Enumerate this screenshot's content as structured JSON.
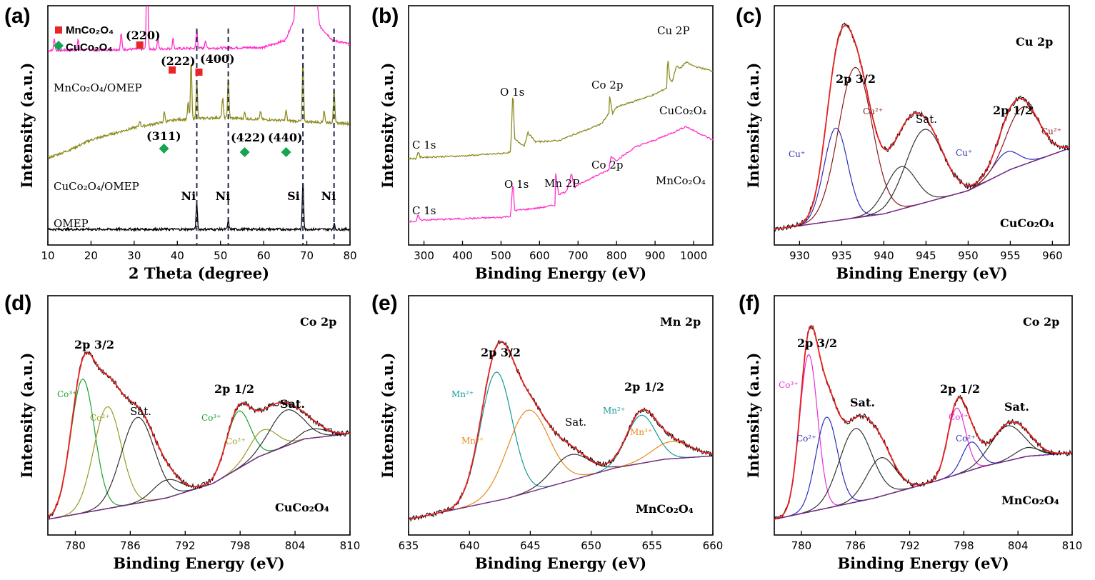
{
  "chart_data": [
    {
      "panel": "(a)",
      "type": "line",
      "xlabel": "2 Theta (degree)",
      "ylabel": "Intensity (a.u.)",
      "xlim": [
        10,
        80
      ],
      "xticks": [
        10,
        20,
        30,
        40,
        50,
        60,
        70,
        80
      ],
      "legend": [
        {
          "label": "MnCo₂O₄",
          "marker": "square",
          "color": "#e8262a"
        },
        {
          "label": "CuCo₂O₄",
          "marker": "diamond",
          "color": "#14a550"
        }
      ],
      "series": [
        {
          "name": "MnCo₂O₄/OMEP",
          "color": "#ff33cc",
          "offset": 0.88,
          "baseline": [
            [
              10,
              0
            ],
            [
              60,
              0.015
            ],
            [
              65,
              0.05
            ],
            [
              67,
              0.15
            ],
            [
              68.5,
              0.7
            ],
            [
              69,
              1.2
            ],
            [
              70.5,
              1.2
            ],
            [
              71.5,
              0.4
            ],
            [
              73,
              0.12
            ],
            [
              76,
              0.05
            ],
            [
              80,
              0.03
            ]
          ],
          "peaks": [
            [
              11.5,
              0.06
            ],
            [
              17,
              0.05
            ],
            [
              27,
              0.08
            ],
            [
              33,
              0.6
            ],
            [
              35.5,
              0.05
            ],
            [
              39,
              0.05
            ],
            [
              44.5,
              0.1
            ],
            [
              46.5,
              0.04
            ]
          ]
        },
        {
          "name": "CuCo₂O₄/OMEP",
          "color": "#8d8b1e",
          "offset": 0.35,
          "baseline": [
            [
              10,
              0
            ],
            [
              15,
              0.04
            ],
            [
              20,
              0.09
            ],
            [
              30,
              0.15
            ],
            [
              40,
              0.19
            ],
            [
              50,
              0.2
            ],
            [
              60,
              0.19
            ],
            [
              70,
              0.18
            ],
            [
              80,
              0.17
            ]
          ],
          "peaks": [
            [
              31.3,
              0.03
            ],
            [
              37,
              0.05
            ],
            [
              42.5,
              0.08
            ],
            [
              43.2,
              0.28
            ],
            [
              44.5,
              0.2
            ],
            [
              50.5,
              0.1
            ],
            [
              51.8,
              0.2
            ],
            [
              55.6,
              0.03
            ],
            [
              59.3,
              0.04
            ],
            [
              65.2,
              0.05
            ],
            [
              69.1,
              0.3
            ],
            [
              74,
              0.06
            ],
            [
              76.3,
              0.18
            ]
          ]
        },
        {
          "name": "OMEP",
          "color": "#000000",
          "offset": 0.0,
          "baseline": [
            [
              10,
              0
            ],
            [
              80,
              0
            ]
          ],
          "peaks": [
            [
              44.5,
              0.13
            ],
            [
              51.8,
              0.04
            ],
            [
              69.1,
              0.24
            ],
            [
              76.3,
              0.03
            ]
          ]
        }
      ],
      "hkl": [
        {
          "label": "(220)",
          "x": 31.3
        },
        {
          "label": "(222)",
          "x": 38.8
        },
        {
          "label": "(400)",
          "x": 45.0
        },
        {
          "label": "(311)",
          "x": 36.9
        },
        {
          "label": "(422)",
          "x": 55.6
        },
        {
          "label": "(440)",
          "x": 65.2
        }
      ],
      "ref_lines": [
        44.5,
        51.8,
        69.1,
        76.3
      ],
      "ref_labels": [
        "Ni",
        "Ni",
        "Si",
        "Ni"
      ]
    },
    {
      "panel": "(b)",
      "type": "line",
      "xlabel": "Binding Energy (eV)",
      "ylabel": "Intensity (a.u.)",
      "xlim": [
        260,
        1050
      ],
      "xticks": [
        300,
        400,
        500,
        600,
        700,
        800,
        900,
        1000
      ],
      "series": [
        {
          "name": "CuCo₂O₄",
          "color": "#8d8b1e",
          "points": [
            [
              260,
              0.0
            ],
            [
              280,
              0.0
            ],
            [
              285,
              0.06
            ],
            [
              290,
              0.01
            ],
            [
              400,
              0.02
            ],
            [
              500,
              0.04
            ],
            [
              525,
              0.05
            ],
            [
              531,
              0.55
            ],
            [
              535,
              0.15
            ],
            [
              560,
              0.1
            ],
            [
              570,
              0.2
            ],
            [
              590,
              0.13
            ],
            [
              650,
              0.14
            ],
            [
              700,
              0.2
            ],
            [
              720,
              0.22
            ],
            [
              760,
              0.27
            ],
            [
              780,
              0.35
            ],
            [
              782,
              0.48
            ],
            [
              790,
              0.35
            ],
            [
              800,
              0.4
            ],
            [
              850,
              0.45
            ],
            [
              900,
              0.5
            ],
            [
              930,
              0.55
            ],
            [
              933,
              0.8
            ],
            [
              938,
              0.62
            ],
            [
              945,
              0.6
            ],
            [
              955,
              0.72
            ],
            [
              965,
              0.7
            ],
            [
              980,
              0.75
            ],
            [
              1000,
              0.72
            ],
            [
              1050,
              0.68
            ]
          ]
        },
        {
          "name": "MnCo₂O₄",
          "color": "#ff33cc",
          "points": [
            [
              260,
              0.0
            ],
            [
              280,
              0.0
            ],
            [
              285,
              0.05
            ],
            [
              290,
              0.01
            ],
            [
              400,
              0.02
            ],
            [
              500,
              0.03
            ],
            [
              525,
              0.04
            ],
            [
              531,
              0.3
            ],
            [
              535,
              0.08
            ],
            [
              600,
              0.1
            ],
            [
              640,
              0.12
            ],
            [
              642,
              0.35
            ],
            [
              650,
              0.2
            ],
            [
              670,
              0.22
            ],
            [
              683,
              0.36
            ],
            [
              690,
              0.25
            ],
            [
              720,
              0.3
            ],
            [
              780,
              0.38
            ],
            [
              785,
              0.48
            ],
            [
              800,
              0.45
            ],
            [
              850,
              0.55
            ],
            [
              900,
              0.6
            ],
            [
              950,
              0.66
            ],
            [
              980,
              0.7
            ],
            [
              1000,
              0.67
            ],
            [
              1050,
              0.6
            ]
          ]
        }
      ]
    },
    {
      "panel": "(c)",
      "type": "line",
      "title": "Cu 2p",
      "sample": "CuCo₂O₄",
      "xlabel": "Binding Energy (eV)",
      "ylabel": "Intensity (a.u.)",
      "xlim": [
        927,
        962
      ],
      "xticks": [
        930,
        935,
        940,
        945,
        950,
        955,
        960
      ],
      "background": [
        [
          927,
          0
        ],
        [
          940,
          0.08
        ],
        [
          950,
          0.2
        ],
        [
          955,
          0.31
        ],
        [
          962,
          0.42
        ]
      ],
      "components": [
        {
          "label": "Cu⁺",
          "color": "#2d2dbd",
          "center": 934.3,
          "width": 1.4,
          "amp": 0.48
        },
        {
          "label": "Cu²⁺",
          "color": "#8b1a1a",
          "center": 936.6,
          "width": 2.0,
          "amp": 0.78
        },
        {
          "label": "Sat.",
          "color": "#333333",
          "center": 942.0,
          "width": 1.8,
          "amp": 0.22
        },
        {
          "label": "Sat.",
          "color": "#333333",
          "center": 944.8,
          "width": 2.2,
          "amp": 0.38
        },
        {
          "label": "Cu⁺",
          "color": "#2d2dbd",
          "center": 954.5,
          "width": 1.5,
          "amp": 0.1
        },
        {
          "label": "Cu²⁺",
          "color": "#8b1a1a",
          "center": 956.5,
          "width": 2.0,
          "amp": 0.3
        }
      ],
      "labels": [
        {
          "text": "2p 3/2"
        },
        {
          "text": "2p 1/2"
        }
      ]
    },
    {
      "panel": "(d)",
      "type": "line",
      "title": "Co 2p",
      "sample": "CuCo₂O₄",
      "xlabel": "Binding Energy (eV)",
      "ylabel": "Intensity (a.u.)",
      "xlim": [
        777,
        810
      ],
      "xticks": [
        780,
        786,
        792,
        798,
        804,
        810
      ],
      "background": [
        [
          777,
          0
        ],
        [
          790,
          0.12
        ],
        [
          795,
          0.2
        ],
        [
          800,
          0.35
        ],
        [
          805,
          0.45
        ],
        [
          810,
          0.48
        ]
      ],
      "components": [
        {
          "label": "Co³⁺",
          "color": "#1aa02c",
          "center": 780.8,
          "width": 1.3,
          "amp": 0.75
        },
        {
          "label": "Co²⁺",
          "color": "#9a9a23",
          "center": 783.5,
          "width": 1.5,
          "amp": 0.57
        },
        {
          "label": "Sat.",
          "color": "#333333",
          "center": 786.8,
          "width": 1.8,
          "amp": 0.48
        },
        {
          "label": "Sat.",
          "color": "#333333",
          "center": 790.0,
          "width": 1.5,
          "amp": 0.1
        },
        {
          "label": "Co³⁺",
          "color": "#1aa02c",
          "center": 797.8,
          "width": 1.3,
          "amp": 0.32
        },
        {
          "label": "Co²⁺",
          "color": "#9a9a23",
          "center": 800.5,
          "width": 1.5,
          "amp": 0.14
        },
        {
          "label": "Sat.",
          "color": "#333333",
          "center": 803.0,
          "width": 1.8,
          "amp": 0.2
        },
        {
          "label": "Sat.",
          "color": "#333333",
          "center": 806.0,
          "width": 1.5,
          "amp": 0.05
        }
      ],
      "labels": [
        {
          "text": "2p 3/2"
        },
        {
          "text": "2p 1/2"
        },
        {
          "text": "Sat."
        },
        {
          "text": "Sat."
        }
      ]
    },
    {
      "panel": "(e)",
      "type": "line",
      "title": "Mn 2p",
      "sample": "MnCo₂O₄",
      "xlabel": "Binding Energy (eV)",
      "ylabel": "Intensity (a.u.)",
      "xlim": [
        635,
        660
      ],
      "xticks": [
        635,
        640,
        645,
        650,
        655,
        660
      ],
      "background": [
        [
          635,
          0
        ],
        [
          643,
          0.12
        ],
        [
          648,
          0.22
        ],
        [
          652,
          0.3
        ],
        [
          656,
          0.35
        ],
        [
          660,
          0.37
        ]
      ],
      "components": [
        {
          "label": "Mn²⁺",
          "color": "#139a9a",
          "center": 642.2,
          "width": 1.3,
          "amp": 0.75
        },
        {
          "label": "Mn³⁺",
          "color": "#e88a1a",
          "center": 644.8,
          "width": 1.7,
          "amp": 0.48
        },
        {
          "label": "Sat.",
          "color": "#333333",
          "center": 648.3,
          "width": 1.5,
          "amp": 0.15
        },
        {
          "label": "Mn²⁺",
          "color": "#139a9a",
          "center": 654.1,
          "width": 1.2,
          "amp": 0.28
        },
        {
          "label": "Mn³⁺",
          "color": "#e88a1a",
          "center": 656.6,
          "width": 1.6,
          "amp": 0.1
        }
      ],
      "labels": [
        {
          "text": "2p 3/2"
        },
        {
          "text": "Sat."
        },
        {
          "text": "2p 1/2"
        }
      ]
    },
    {
      "panel": "(f)",
      "type": "line",
      "title": "Co 2p",
      "sample": "MnCo₂O₄",
      "xlabel": "Binding Energy (eV)",
      "ylabel": "Intensity (a.u.)",
      "xlim": [
        777,
        810
      ],
      "xticks": [
        780,
        786,
        792,
        798,
        804,
        810
      ],
      "background": [
        [
          777,
          0
        ],
        [
          788,
          0.12
        ],
        [
          795,
          0.22
        ],
        [
          800,
          0.3
        ],
        [
          805,
          0.36
        ],
        [
          810,
          0.38
        ]
      ],
      "components": [
        {
          "label": "Co³⁺",
          "color": "#e32fd8",
          "center": 780.8,
          "width": 1.0,
          "amp": 0.9
        },
        {
          "label": "Co²⁺",
          "color": "#2d2dbd",
          "center": 782.8,
          "width": 1.2,
          "amp": 0.52
        },
        {
          "label": "Sat.",
          "color": "#333333",
          "center": 786.0,
          "width": 1.8,
          "amp": 0.42
        },
        {
          "label": "Sat.",
          "color": "#333333",
          "center": 788.8,
          "width": 1.6,
          "amp": 0.22
        },
        {
          "label": "Co³⁺",
          "color": "#e32fd8",
          "center": 797.2,
          "width": 1.0,
          "amp": 0.38
        },
        {
          "label": "Co²⁺",
          "color": "#2d2dbd",
          "center": 798.8,
          "width": 1.0,
          "amp": 0.16
        },
        {
          "label": "Sat.",
          "color": "#333333",
          "center": 802.8,
          "width": 1.8,
          "amp": 0.2
        },
        {
          "label": "Sat.",
          "color": "#333333",
          "center": 805.0,
          "width": 1.4,
          "amp": 0.05
        }
      ],
      "labels": [
        {
          "text": "2p 3/2"
        },
        {
          "text": "Sat."
        },
        {
          "text": "2p 1/2"
        },
        {
          "text": "Sat."
        }
      ]
    }
  ]
}
